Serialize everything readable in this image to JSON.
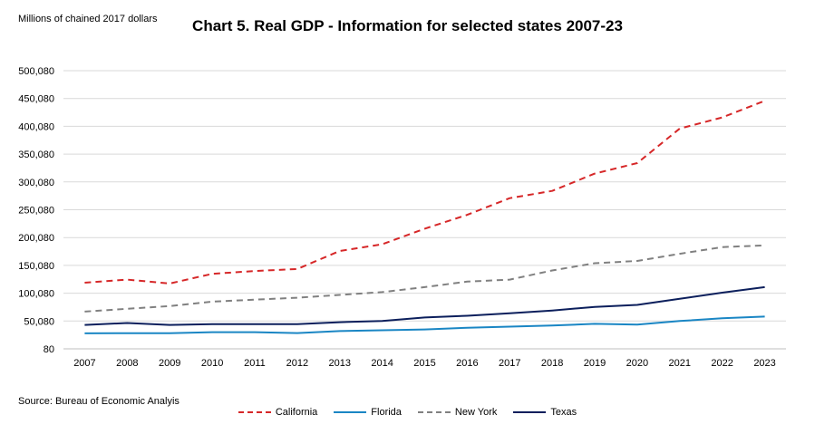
{
  "chart_data": {
    "type": "line",
    "title": "Chart 5. Real GDP - Information for selected states 2007-23",
    "unit_label": "Millions of chained 2017 dollars",
    "source": "Source: Bureau of Economic Analyis",
    "x": [
      "2007",
      "2008",
      "2009",
      "2010",
      "2011",
      "2012",
      "2013",
      "2014",
      "2015",
      "2016",
      "2017",
      "2018",
      "2019",
      "2020",
      "2021",
      "2022",
      "2023"
    ],
    "y_ticks": [
      80,
      50080,
      100080,
      150080,
      200080,
      250080,
      300080,
      350080,
      400080,
      450080,
      500080
    ],
    "y_tick_labels": [
      "80",
      "50,080",
      "100,080",
      "150,080",
      "200,080",
      "250,080",
      "300,080",
      "350,080",
      "400,080",
      "450,080",
      "500,080"
    ],
    "ylim": [
      80,
      500080
    ],
    "grid": true,
    "legend_position": "bottom",
    "series": [
      {
        "name": "California",
        "color": "#d62728",
        "dash": "dashed",
        "values": [
          119000,
          124500,
          117500,
          135000,
          140000,
          143500,
          176000,
          188000,
          216000,
          241000,
          271000,
          284000,
          315000,
          334000,
          396000,
          416000,
          446000
        ]
      },
      {
        "name": "Florida",
        "color": "#1a86c4",
        "dash": "solid",
        "values": [
          28000,
          28200,
          28300,
          30000,
          30000,
          28500,
          32000,
          33500,
          35000,
          38000,
          40000,
          42000,
          45000,
          43500,
          50000,
          55000,
          58000
        ]
      },
      {
        "name": "New York",
        "color": "#808080",
        "dash": "dashed",
        "values": [
          67000,
          72000,
          77000,
          85000,
          88500,
          92000,
          97000,
          102000,
          111000,
          121000,
          124500,
          141000,
          154000,
          158000,
          171000,
          183000,
          186000
        ]
      },
      {
        "name": "Texas",
        "color": "#0c1f5c",
        "dash": "solid",
        "values": [
          43000,
          46500,
          43000,
          44500,
          44500,
          44500,
          48000,
          50000,
          56500,
          59500,
          64000,
          69000,
          75500,
          79000,
          90000,
          101000,
          111000
        ]
      }
    ]
  }
}
